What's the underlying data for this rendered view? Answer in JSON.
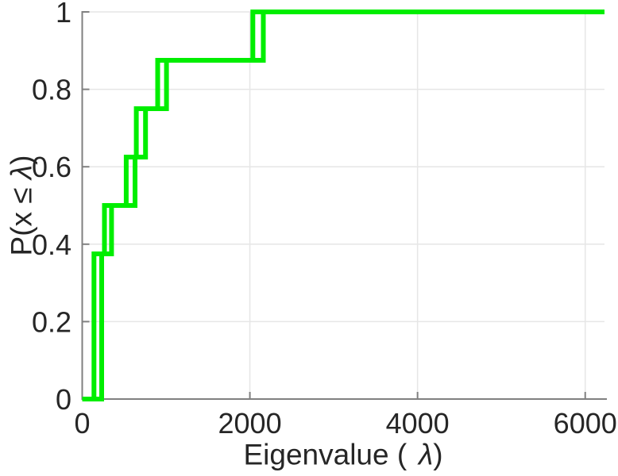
{
  "figure": {
    "background": "#ffffff",
    "axis_color": "#808080",
    "grid_color": "#e6e6e6",
    "text_color": "#262626",
    "curve_color": "#00ee00"
  },
  "chart_data": {
    "type": "line",
    "subtype": "empirical-cdf-stairs",
    "title": "",
    "xlabel": "Eigenvalue ( λ)",
    "ylabel": "P(x ≤ λ)",
    "xlabel_parts": {
      "pre": "Eigenvalue (",
      "sym": "λ",
      "post": ")"
    },
    "ylabel_parts": {
      "pre": "P(x ≤ ",
      "sym": "λ",
      "post": ")"
    },
    "xlim": [
      0,
      6230
    ],
    "ylim": [
      0,
      1
    ],
    "xticks": [
      0,
      2000,
      4000,
      6000
    ],
    "yticks": [
      0,
      0.2,
      0.4,
      0.6,
      0.8,
      1
    ],
    "grid": true,
    "legend": "none",
    "series": [
      {
        "name": "ecdf-curve-1",
        "color": "#00ee00",
        "steps": [
          [
            140,
            0.375
          ],
          [
            265,
            0.5
          ],
          [
            525,
            0.625
          ],
          [
            645,
            0.75
          ],
          [
            900,
            0.875
          ],
          [
            2035,
            1
          ]
        ]
      },
      {
        "name": "ecdf-curve-2",
        "color": "#00ee00",
        "steps": [
          [
            232,
            0.375
          ],
          [
            350,
            0.5
          ],
          [
            630,
            0.625
          ],
          [
            755,
            0.75
          ],
          [
            1005,
            0.875
          ],
          [
            2160,
            1
          ]
        ]
      }
    ]
  }
}
